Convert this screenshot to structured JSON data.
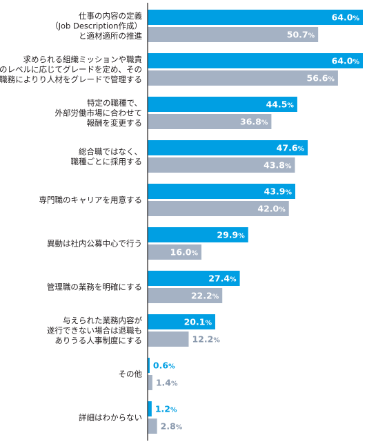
{
  "chart_data": {
    "type": "bar",
    "orientation": "horizontal",
    "categories": [
      [
        "仕事の内容の定義",
        "（Job Description作成）",
        "と適材適所の推進"
      ],
      [
        "求められる組織ミッションや職責",
        "のレベルに応じてグレードを定め、その",
        "職務によりり人材をグレードで管理する"
      ],
      [
        "特定の職種で、",
        "外部労働市場に合わせて",
        "報酬を変更する"
      ],
      [
        "総合職ではなく、",
        "職種ごとに採用する"
      ],
      [
        "専門職のキャリアを用意する"
      ],
      [
        "異動は社内公募中心で行う"
      ],
      [
        "管理職の業務を明確にする"
      ],
      [
        "与えられた業務内容が",
        "遂行できない場合は退職も",
        "ありうる人事制度にする"
      ],
      [
        "その他"
      ],
      [
        "詳細はわからない"
      ]
    ],
    "series": [
      {
        "color": "#009fe3",
        "values": [
          64.0,
          64.0,
          44.5,
          47.6,
          43.9,
          29.9,
          27.4,
          20.1,
          0.6,
          1.2
        ]
      },
      {
        "color": "#a5b2c4",
        "values": [
          50.7,
          56.6,
          36.8,
          43.8,
          42.0,
          16.0,
          22.2,
          12.2,
          1.4,
          2.8
        ]
      }
    ],
    "value_suffix": "%",
    "xlim": [
      0,
      64.0
    ],
    "label_colors": {
      "on_bar": "#ffffff",
      "outside": {
        "0": "#009fe3",
        "1": "#8a99ad"
      }
    },
    "axis_color": "#231f20"
  }
}
